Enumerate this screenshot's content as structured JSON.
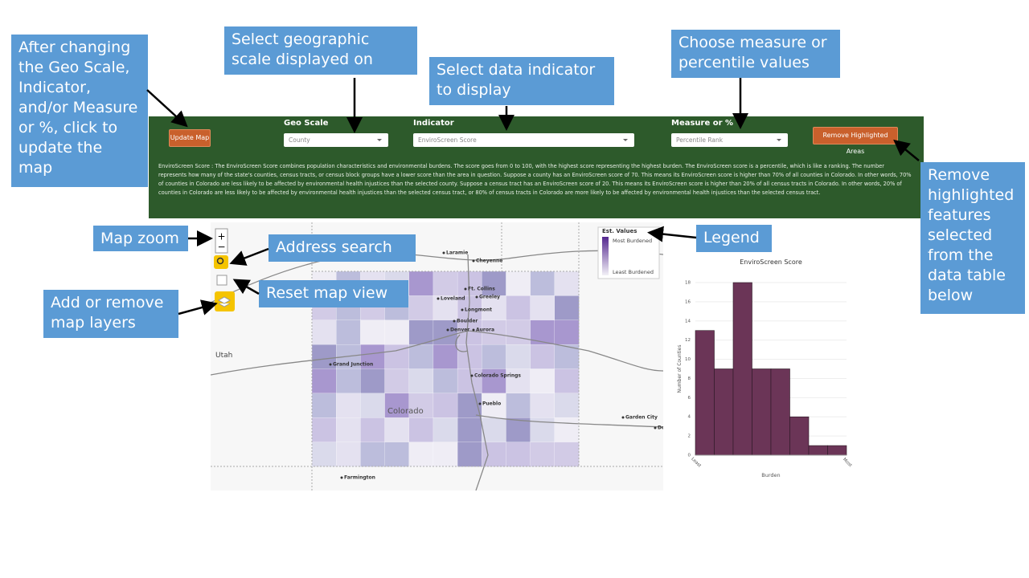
{
  "annotations": [
    "After changing the Geo Scale, Indicator, and/or Measure or %, click to update the map",
    "Select geographic scale displayed on map",
    "Select data indicator to display",
    "Choose measure or percentile values",
    "Remove highlighted features selected from the data table below",
    "Map zoom",
    "Address search",
    "Reset map view",
    "Add or remove map layers",
    "Legend"
  ],
  "toolbar": {
    "update_button": "Update Map",
    "geo_scale": {
      "label": "Geo Scale",
      "value": "County"
    },
    "indicator": {
      "label": "Indicator",
      "value": "EnviroScreen Score"
    },
    "measure": {
      "label": "Measure or %",
      "value": "Percentile Rank"
    },
    "remove_button": "Remove Highlighted Areas",
    "description": "EnviroScreen Score : The EnviroScreen Score combines population characteristics and environmental burdens. The score goes from 0 to 100, with the highest score representing the highest burden. The EnviroScreen score is a percentile, which is like a ranking. The number represents how many of the state's counties, census tracts, or census block groups have a lower score than the area in question. Suppose a county has an EnviroScreen score of 70. This means its EnviroScreen score is higher than 70% of all counties in Colorado. In other words, 70% of counties in Colorado are less likely to be affected by environmental health injustices than the selected county.  Suppose a census tract has an EnviroScreen score of 20. This means its EnviroScreen score is higher than 20% of all census tracts in Colorado. In other words, 20% of counties in Colorado are less likely to be affected by environmental health injustices than the selected census tract, or 80% of census tracts in Colorado are more likely to be affected by environmental health injustices than the selected census tract."
  },
  "map": {
    "zoom_in": "+",
    "zoom_out": "−",
    "place_labels": [
      "Laramie",
      "Cheyenne",
      "Ft. Collins",
      "Greeley",
      "Loveland",
      "Longmont",
      "Boulder",
      "Denver",
      "Aurora",
      "Grand Junction",
      "Colorado Springs",
      "Pueblo",
      "Garden City",
      "Farmington",
      "Do"
    ],
    "region_labels": [
      "Utah",
      "Colorado"
    ],
    "legend": {
      "title": "Est. Values",
      "high": "Most Burdened",
      "low": "Least Burdened"
    }
  },
  "chart_data": {
    "type": "bar",
    "title": "EnviroScreen Score",
    "categories": [
      null,
      null,
      null,
      null,
      null,
      null,
      null,
      null
    ],
    "values": [
      13,
      9,
      18,
      9,
      9,
      4,
      1,
      1
    ],
    "color": "#6b3557",
    "ylim": [
      0,
      18
    ],
    "yticks": [
      0,
      2,
      4,
      6,
      8,
      10,
      12,
      14,
      16,
      18
    ],
    "grid": true,
    "x_label": "Burden",
    "y_label": "Number of Counties",
    "x_end_labels": [
      "Least",
      "Most"
    ]
  }
}
